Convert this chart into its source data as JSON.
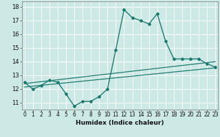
{
  "xlabel": "Humidex (Indice chaleur)",
  "ylabel": "",
  "background_color": "#cce9e5",
  "line_color": "#1a7a6e",
  "x_hours": [
    0,
    1,
    2,
    3,
    4,
    5,
    6,
    7,
    8,
    9,
    10,
    11,
    12,
    13,
    14,
    15,
    16,
    17,
    18,
    19,
    20,
    21,
    22,
    23
  ],
  "humidex_line": [
    12.5,
    12.0,
    12.25,
    12.65,
    12.5,
    11.65,
    10.75,
    11.1,
    11.1,
    11.45,
    12.0,
    14.85,
    17.8,
    17.2,
    17.0,
    16.75,
    17.5,
    15.5,
    14.2,
    14.2,
    14.2,
    14.2,
    13.85,
    13.6
  ],
  "trend_line1": [
    [
      0,
      12.15
    ],
    [
      23,
      13.55
    ]
  ],
  "trend_line2": [
    [
      0,
      12.4
    ],
    [
      23,
      14.0
    ]
  ],
  "ylim": [
    10.5,
    18.4
  ],
  "yticks": [
    11,
    12,
    13,
    14,
    15,
    16,
    17,
    18
  ],
  "xlim": [
    -0.3,
    23.3
  ],
  "tick_fontsize": 5.5,
  "xlabel_fontsize": 6.5
}
